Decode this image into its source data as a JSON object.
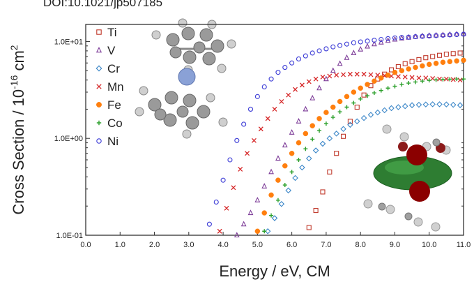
{
  "header_fragment": "DOI:10.1021/jp507185",
  "chart_data": {
    "type": "scatter",
    "title": "",
    "xlabel": "Energy / eV, CM",
    "ylabel": "Cross Section / 10",
    "ylabel_exponent": "-16",
    "ylabel_unit": " cm",
    "ylabel_unit_exponent": "2",
    "x_scale": "linear",
    "y_scale": "log",
    "xlim": [
      0,
      11
    ],
    "ylim": [
      0.1,
      15
    ],
    "x_ticks": [
      0,
      1,
      2,
      3,
      4,
      5,
      6,
      7,
      8,
      9,
      10,
      11
    ],
    "x_tick_labels": [
      "0.0",
      "1.0",
      "2.0",
      "3.0",
      "4.0",
      "5.0",
      "6.0",
      "7.0",
      "8.0",
      "9.0",
      "10.0",
      "11.0"
    ],
    "y_ticks": [
      0.1,
      1,
      10
    ],
    "y_tick_labels": [
      "1.0E-01",
      "1.0E+00",
      "1.0E+01"
    ],
    "legend_position": "top-left",
    "grid": false,
    "series": [
      {
        "name": "Ti",
        "marker": "square",
        "color": "#c0392b",
        "x": [
          6.5,
          6.7,
          6.9,
          7.1,
          7.3,
          7.5,
          7.7,
          7.9,
          8.1,
          8.3,
          8.5,
          8.7,
          8.9,
          9.1,
          9.3,
          9.5,
          9.7,
          9.9,
          10.1,
          10.3,
          10.5,
          10.7,
          10.9
        ],
        "y": [
          0.12,
          0.18,
          0.28,
          0.45,
          0.7,
          1.05,
          1.5,
          2.1,
          2.8,
          3.5,
          4.1,
          4.6,
          5.1,
          5.5,
          5.9,
          6.2,
          6.5,
          6.8,
          7.0,
          7.2,
          7.4,
          7.5,
          7.6
        ]
      },
      {
        "name": "V",
        "marker": "triangle",
        "color": "#7d3c98",
        "x": [
          4.4,
          4.6,
          4.8,
          5.0,
          5.2,
          5.4,
          5.6,
          5.8,
          6.0,
          6.2,
          6.4,
          6.6,
          6.8,
          7.0,
          7.2,
          7.4,
          7.6,
          7.8,
          8.0,
          8.2,
          8.4,
          8.6,
          8.8,
          9.0,
          9.2,
          9.4,
          9.6,
          9.8,
          10.0,
          10.2,
          10.4,
          10.6,
          10.8,
          11.0
        ],
        "y": [
          0.1,
          0.13,
          0.17,
          0.23,
          0.32,
          0.45,
          0.62,
          0.85,
          1.15,
          1.5,
          2.0,
          2.6,
          3.3,
          4.1,
          5.0,
          5.9,
          6.8,
          7.6,
          8.3,
          8.9,
          9.4,
          9.8,
          10.2,
          10.5,
          10.8,
          11.0,
          11.2,
          11.4,
          11.5,
          11.6,
          11.7,
          11.8,
          11.9,
          12.0
        ]
      },
      {
        "name": "Cr",
        "marker": "diamond",
        "color": "#3a86c8",
        "x": [
          5.3,
          5.5,
          5.7,
          5.9,
          6.1,
          6.3,
          6.5,
          6.7,
          6.9,
          7.1,
          7.3,
          7.5,
          7.7,
          7.9,
          8.1,
          8.3,
          8.5,
          8.7,
          8.9,
          9.1,
          9.3,
          9.5,
          9.7,
          9.9,
          10.1,
          10.3,
          10.5,
          10.7,
          10.9
        ],
        "y": [
          0.11,
          0.15,
          0.21,
          0.29,
          0.39,
          0.5,
          0.62,
          0.75,
          0.88,
          1.0,
          1.12,
          1.25,
          1.38,
          1.5,
          1.62,
          1.75,
          1.85,
          1.95,
          2.05,
          2.1,
          2.15,
          2.2,
          2.22,
          2.24,
          2.25,
          2.25,
          2.24,
          2.22,
          2.2
        ]
      },
      {
        "name": "Mn",
        "marker": "cross",
        "color": "#d62728",
        "x": [
          3.9,
          4.1,
          4.3,
          4.5,
          4.7,
          4.9,
          5.1,
          5.3,
          5.5,
          5.7,
          5.9,
          6.1,
          6.3,
          6.5,
          6.7,
          6.9,
          7.1,
          7.3,
          7.5,
          7.7,
          7.9,
          8.1,
          8.3,
          8.5,
          8.7,
          8.9,
          9.1,
          9.3,
          9.5,
          9.7,
          9.9,
          10.1,
          10.3,
          10.5,
          10.7,
          10.9
        ],
        "y": [
          0.11,
          0.19,
          0.31,
          0.48,
          0.7,
          0.95,
          1.25,
          1.6,
          2.0,
          2.4,
          2.8,
          3.2,
          3.55,
          3.85,
          4.1,
          4.3,
          4.4,
          4.5,
          4.55,
          4.6,
          4.6,
          4.6,
          4.55,
          4.5,
          4.45,
          4.4,
          4.35,
          4.3,
          4.25,
          4.2,
          4.2,
          4.15,
          4.1,
          4.1,
          4.05,
          4.0
        ]
      },
      {
        "name": "Fe",
        "marker": "filled-circle",
        "color": "#ff7f0e",
        "x": [
          5.0,
          5.2,
          5.4,
          5.6,
          5.8,
          6.0,
          6.2,
          6.4,
          6.6,
          6.8,
          7.0,
          7.2,
          7.4,
          7.6,
          7.8,
          8.0,
          8.2,
          8.4,
          8.6,
          8.8,
          9.0,
          9.2,
          9.4,
          9.6,
          9.8,
          10.0,
          10.2,
          10.4,
          10.6,
          10.8,
          11.0
        ],
        "y": [
          0.11,
          0.17,
          0.26,
          0.37,
          0.52,
          0.7,
          0.9,
          1.12,
          1.35,
          1.6,
          1.85,
          2.1,
          2.4,
          2.7,
          3.0,
          3.3,
          3.6,
          3.9,
          4.2,
          4.5,
          4.8,
          5.0,
          5.2,
          5.4,
          5.6,
          5.8,
          5.95,
          6.1,
          6.2,
          6.3,
          6.4
        ]
      },
      {
        "name": "Co",
        "marker": "plus",
        "color": "#2ca02c",
        "x": [
          5.2,
          5.4,
          5.6,
          5.8,
          6.0,
          6.2,
          6.4,
          6.6,
          6.8,
          7.0,
          7.2,
          7.4,
          7.6,
          7.8,
          8.0,
          8.2,
          8.4,
          8.6,
          8.8,
          9.0,
          9.2,
          9.4,
          9.6,
          9.8,
          10.0,
          10.2,
          10.4,
          10.6,
          10.8,
          11.0
        ],
        "y": [
          0.11,
          0.16,
          0.23,
          0.33,
          0.45,
          0.6,
          0.78,
          0.98,
          1.2,
          1.42,
          1.65,
          1.88,
          2.1,
          2.32,
          2.55,
          2.75,
          2.95,
          3.12,
          3.3,
          3.45,
          3.6,
          3.72,
          3.82,
          3.9,
          3.97,
          4.02,
          4.06,
          4.08,
          4.1,
          4.1
        ]
      },
      {
        "name": "Ni",
        "marker": "circle",
        "color": "#3b3bd6",
        "x": [
          3.6,
          3.8,
          4.0,
          4.2,
          4.4,
          4.6,
          4.8,
          5.0,
          5.2,
          5.4,
          5.6,
          5.8,
          6.0,
          6.2,
          6.4,
          6.6,
          6.8,
          7.0,
          7.2,
          7.4,
          7.6,
          7.8,
          8.0,
          8.2,
          8.4,
          8.6,
          8.8,
          9.0,
          9.2,
          9.4,
          9.6,
          9.8,
          10.0,
          10.2,
          10.4,
          10.6,
          10.8,
          11.0
        ],
        "y": [
          0.13,
          0.22,
          0.37,
          0.6,
          0.95,
          1.4,
          2.0,
          2.7,
          3.4,
          4.1,
          4.8,
          5.4,
          6.0,
          6.6,
          7.1,
          7.6,
          8.0,
          8.4,
          8.8,
          9.1,
          9.4,
          9.7,
          9.9,
          10.1,
          10.3,
          10.5,
          10.7,
          10.9,
          11.0,
          11.1,
          11.2,
          11.3,
          11.4,
          11.5,
          11.6,
          11.7,
          11.8,
          11.9
        ]
      }
    ]
  }
}
